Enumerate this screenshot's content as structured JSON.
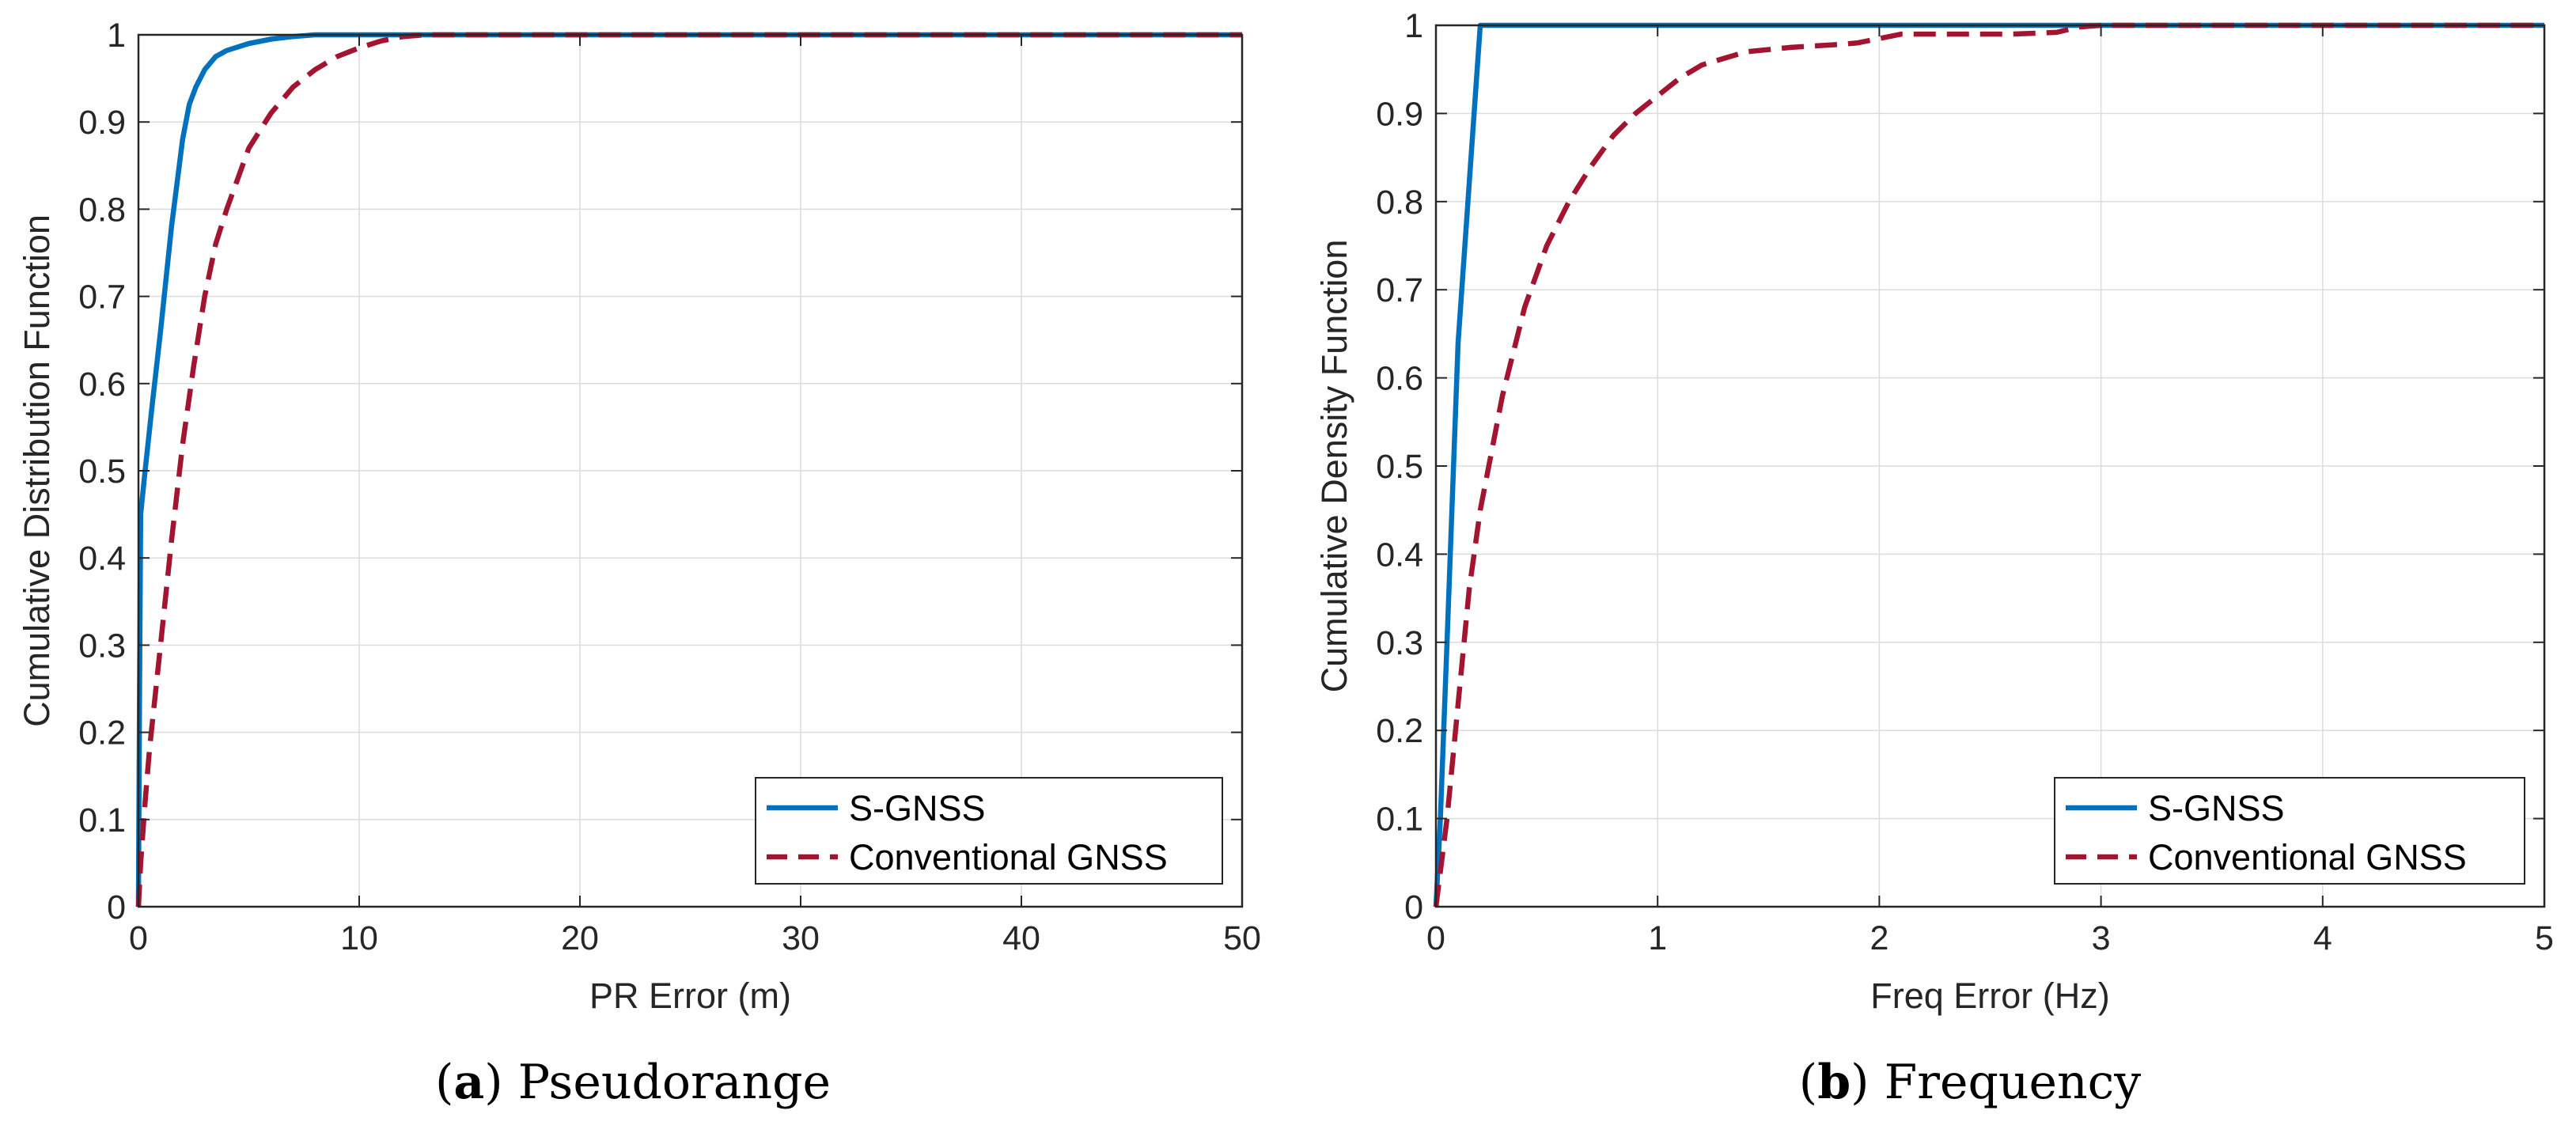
{
  "colors": {
    "s_gnss": "#0072BD",
    "conventional": "#A2142F",
    "grid": "#dcdcdc",
    "axis": "#262626"
  },
  "chart_data": [
    {
      "type": "line",
      "panel_letter": "a",
      "caption": "Pseudorange",
      "xlabel": "PR Error (m)",
      "ylabel": "Cumulative Distribution Function",
      "xlim": [
        0,
        50
      ],
      "ylim": [
        0,
        1
      ],
      "xticks": [
        0,
        10,
        20,
        30,
        40,
        50
      ],
      "xtick_labels": [
        "0",
        "10",
        "20",
        "30",
        "40",
        "50"
      ],
      "yticks": [
        0,
        0.1,
        0.2,
        0.3,
        0.4,
        0.5,
        0.6,
        0.7,
        0.8,
        0.9,
        1
      ],
      "ytick_labels": [
        "0",
        "0.1",
        "0.2",
        "0.3",
        "0.4",
        "0.5",
        "0.6",
        "0.7",
        "0.8",
        "0.9",
        "1"
      ],
      "grid": true,
      "legend_position": "bottom-right",
      "series": [
        {
          "name": "S-GNSS",
          "style": "solid",
          "x": [
            0,
            0.05,
            0.1,
            0.3,
            0.6,
            1.0,
            1.5,
            2.0,
            2.3,
            2.6,
            3.0,
            3.5,
            4.0,
            5.0,
            6.0,
            7.0,
            8.0,
            10.0,
            50.0
          ],
          "y": [
            0,
            0.25,
            0.45,
            0.5,
            0.57,
            0.66,
            0.78,
            0.88,
            0.92,
            0.94,
            0.96,
            0.975,
            0.982,
            0.99,
            0.995,
            0.998,
            1.0,
            1.0,
            1.0
          ]
        },
        {
          "name": "Conventional GNSS",
          "style": "dashed",
          "x": [
            0,
            0.1,
            0.3,
            0.5,
            1.0,
            1.5,
            2.0,
            2.5,
            3.0,
            3.5,
            4.0,
            5.0,
            6.0,
            7.0,
            8.0,
            9.0,
            10.0,
            11.0,
            12.0,
            13.0,
            50.0
          ],
          "y": [
            0,
            0.05,
            0.12,
            0.18,
            0.3,
            0.42,
            0.53,
            0.62,
            0.7,
            0.76,
            0.8,
            0.87,
            0.91,
            0.94,
            0.96,
            0.975,
            0.985,
            0.993,
            0.998,
            1.0,
            1.0
          ]
        }
      ]
    },
    {
      "type": "line",
      "panel_letter": "b",
      "caption": "Frequency",
      "xlabel": "Freq Error (Hz)",
      "ylabel": "Cumulative Density Function",
      "xlim": [
        0,
        5
      ],
      "ylim": [
        0,
        1
      ],
      "xticks": [
        0,
        1,
        2,
        3,
        4,
        5
      ],
      "xtick_labels": [
        "0",
        "1",
        "2",
        "3",
        "4",
        "5"
      ],
      "yticks": [
        0,
        0.1,
        0.2,
        0.3,
        0.4,
        0.5,
        0.6,
        0.7,
        0.8,
        0.9,
        1
      ],
      "ytick_labels": [
        "0",
        "0.1",
        "0.2",
        "0.3",
        "0.4",
        "0.5",
        "0.6",
        "0.7",
        "0.8",
        "0.9",
        "1"
      ],
      "grid": true,
      "legend_position": "bottom-right",
      "series": [
        {
          "name": "S-GNSS",
          "style": "solid",
          "x": [
            0,
            0.02,
            0.05,
            0.1,
            0.15,
            0.2,
            0.21,
            5.0
          ],
          "y": [
            0,
            0.1,
            0.3,
            0.64,
            0.82,
            1.0,
            1.0,
            1.0
          ]
        },
        {
          "name": "Conventional GNSS",
          "style": "dashed",
          "x": [
            0,
            0.05,
            0.1,
            0.15,
            0.2,
            0.3,
            0.4,
            0.5,
            0.6,
            0.7,
            0.8,
            0.9,
            1.0,
            1.1,
            1.2,
            1.4,
            1.6,
            1.8,
            1.9,
            2.0,
            2.1,
            2.4,
            2.6,
            2.8,
            2.9,
            3.0,
            5.0
          ],
          "y": [
            0,
            0.1,
            0.23,
            0.36,
            0.45,
            0.58,
            0.68,
            0.75,
            0.8,
            0.84,
            0.875,
            0.9,
            0.92,
            0.94,
            0.955,
            0.97,
            0.975,
            0.978,
            0.98,
            0.985,
            0.99,
            0.99,
            0.99,
            0.992,
            0.998,
            1.0,
            1.0
          ]
        }
      ]
    }
  ]
}
